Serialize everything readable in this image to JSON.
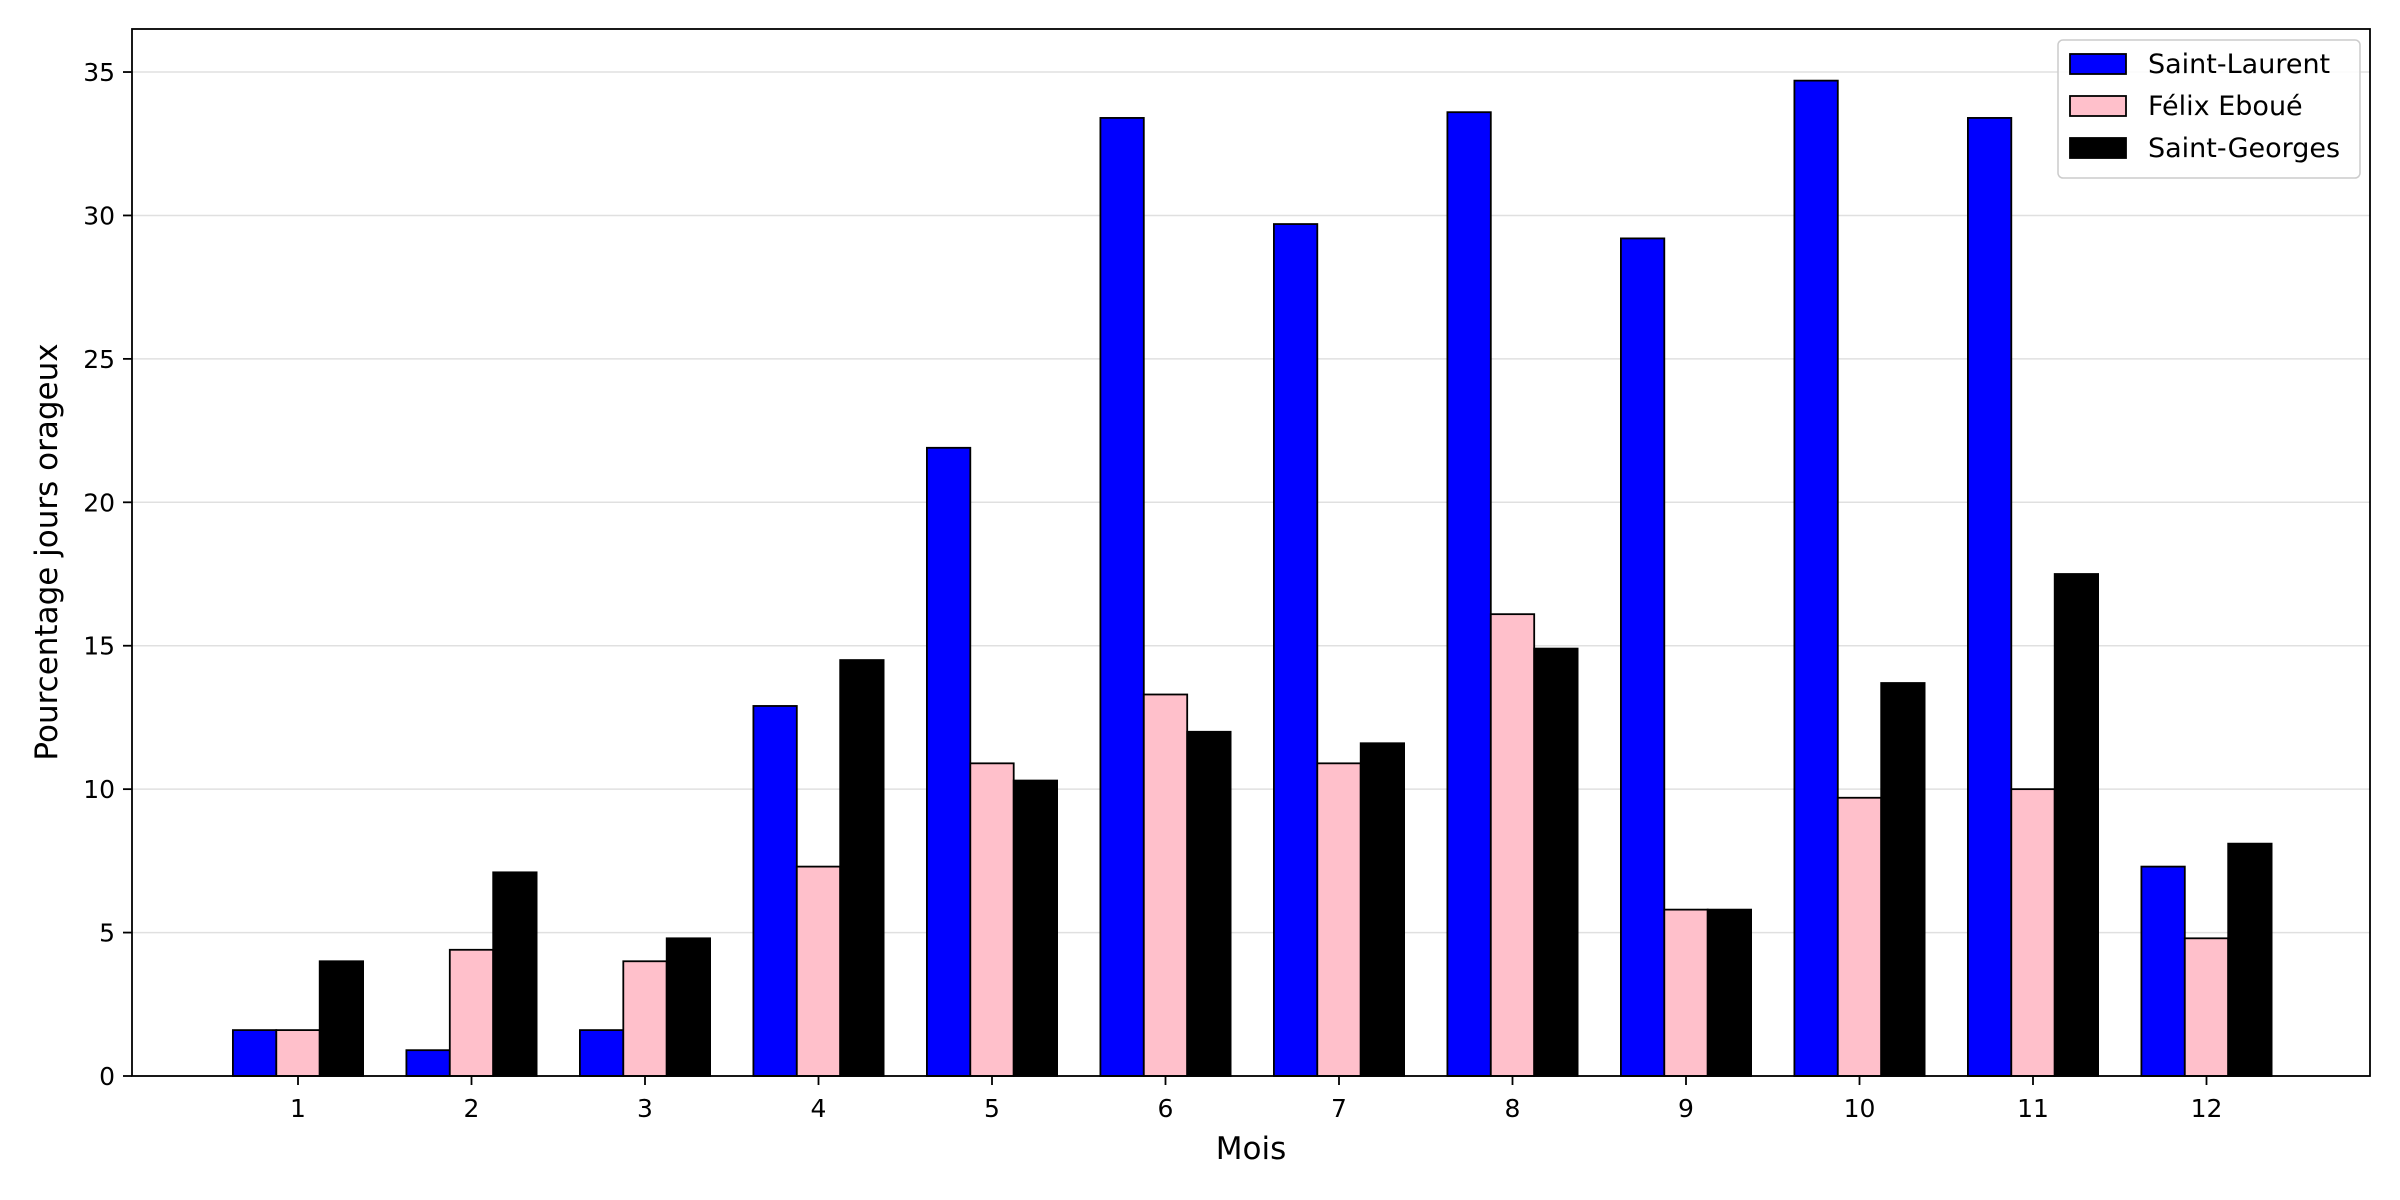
{
  "chart_data": {
    "type": "bar",
    "title": "",
    "xlabel": "Mois",
    "ylabel": "Pourcentage jours orageux",
    "categories": [
      "1",
      "2",
      "3",
      "4",
      "5",
      "6",
      "7",
      "8",
      "9",
      "10",
      "11",
      "12"
    ],
    "ylim": [
      0,
      36.5
    ],
    "yticks": [
      0,
      5,
      10,
      15,
      20,
      25,
      30,
      35
    ],
    "grid": "horizontal",
    "legend_position": "top-right",
    "series": [
      {
        "name": "Saint-Laurent",
        "color": "#0000ff",
        "values": [
          1.6,
          0.9,
          1.6,
          12.9,
          21.9,
          33.4,
          29.7,
          33.6,
          29.2,
          34.7,
          33.4,
          7.3
        ]
      },
      {
        "name": "Félix Eboué",
        "color": "#ffc0cb",
        "values": [
          1.6,
          4.4,
          4.0,
          7.3,
          10.9,
          13.3,
          10.9,
          16.1,
          5.8,
          9.7,
          10.0,
          4.8
        ]
      },
      {
        "name": "Saint-Georges",
        "color": "#000000",
        "values": [
          4.0,
          7.1,
          4.8,
          14.5,
          10.3,
          12.0,
          11.6,
          14.9,
          5.8,
          13.7,
          17.5,
          8.1
        ]
      }
    ]
  }
}
